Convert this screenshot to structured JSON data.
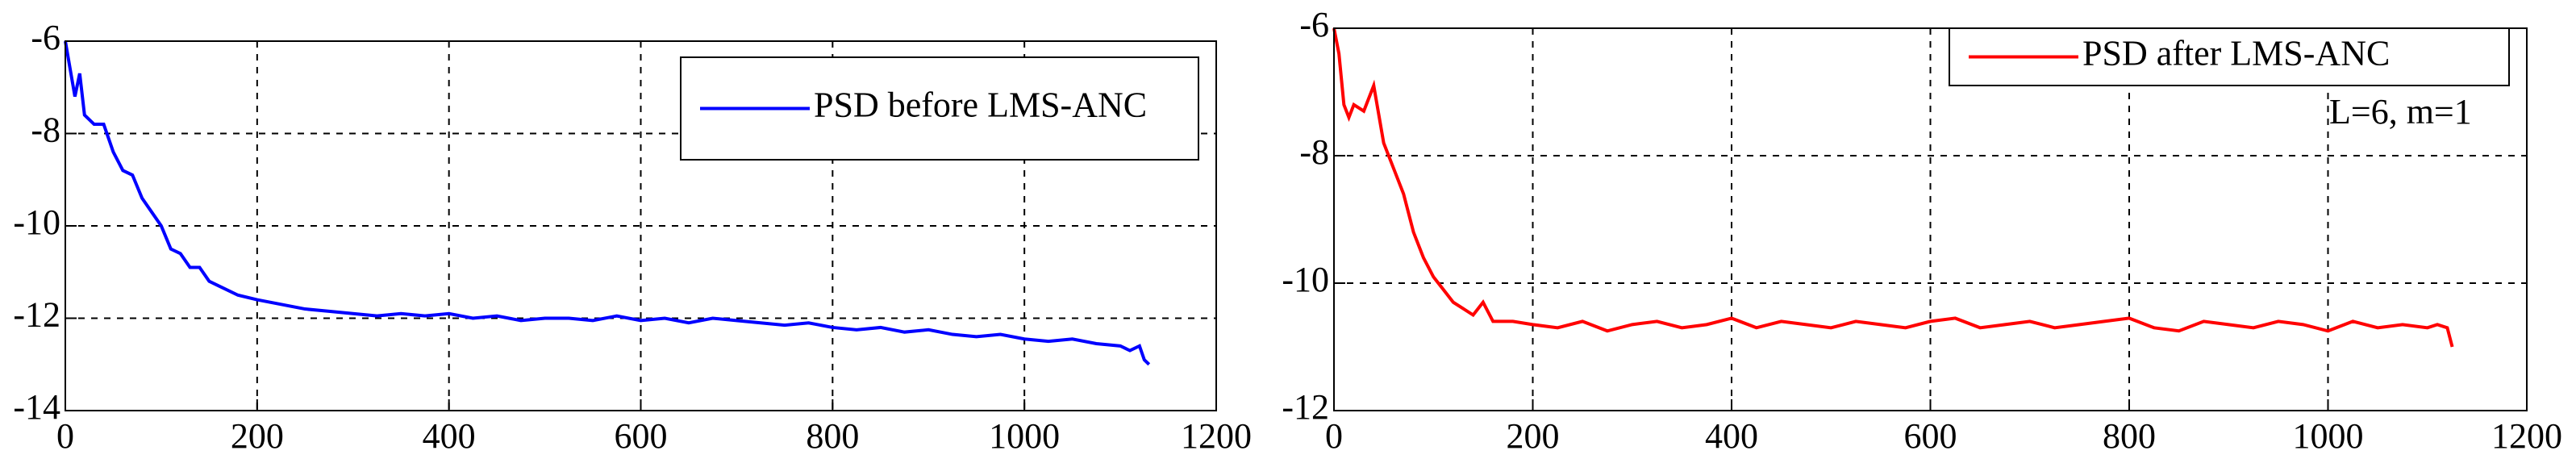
{
  "chart_data": [
    {
      "type": "line",
      "x": [
        0,
        5,
        10,
        15,
        20,
        30,
        40,
        50,
        60,
        70,
        80,
        90,
        100,
        110,
        120,
        130,
        140,
        150,
        160,
        180,
        200,
        225,
        250,
        275,
        300,
        325,
        350,
        375,
        400,
        425,
        450,
        475,
        500,
        525,
        550,
        575,
        600,
        625,
        650,
        675,
        700,
        725,
        750,
        775,
        800,
        825,
        850,
        875,
        900,
        925,
        950,
        975,
        1000,
        1025,
        1050,
        1075,
        1100,
        1110,
        1120,
        1125,
        1130
      ],
      "series": [
        {
          "name": "PSD before LMS-ANC",
          "color": "#0000ff",
          "values": [
            -6.0,
            -6.6,
            -7.2,
            -6.7,
            -7.6,
            -7.8,
            -7.8,
            -8.4,
            -8.8,
            -8.9,
            -9.4,
            -9.7,
            -10.0,
            -10.5,
            -10.6,
            -10.9,
            -10.9,
            -11.2,
            -11.3,
            -11.5,
            -11.6,
            -11.7,
            -11.8,
            -11.85,
            -11.9,
            -11.95,
            -11.9,
            -11.95,
            -11.9,
            -12.0,
            -11.95,
            -12.05,
            -12.0,
            -12.0,
            -12.05,
            -11.95,
            -12.05,
            -12.0,
            -12.1,
            -12.0,
            -12.05,
            -12.1,
            -12.15,
            -12.1,
            -12.2,
            -12.25,
            -12.2,
            -12.3,
            -12.25,
            -12.35,
            -12.4,
            -12.35,
            -12.45,
            -12.5,
            -12.45,
            -12.55,
            -12.6,
            -12.7,
            -12.6,
            -12.9,
            -13.0
          ]
        }
      ],
      "xlim": [
        0,
        1200
      ],
      "xticks": [
        0,
        200,
        400,
        600,
        800,
        1000,
        1200
      ],
      "ylim": [
        -14,
        -6
      ],
      "yticks": [
        -14,
        -12,
        -10,
        -8,
        -6
      ],
      "grid": true,
      "legend": "upper-right"
    },
    {
      "type": "line",
      "x": [
        0,
        5,
        10,
        15,
        20,
        30,
        40,
        50,
        60,
        70,
        80,
        90,
        100,
        110,
        120,
        130,
        140,
        150,
        160,
        180,
        200,
        225,
        250,
        275,
        300,
        325,
        350,
        375,
        400,
        425,
        450,
        475,
        500,
        525,
        550,
        575,
        600,
        625,
        650,
        675,
        700,
        725,
        750,
        775,
        800,
        825,
        850,
        875,
        900,
        925,
        950,
        975,
        1000,
        1025,
        1050,
        1075,
        1100,
        1110,
        1120,
        1125
      ],
      "series": [
        {
          "name": "PSD after LMS-ANC",
          "color": "#ff0000",
          "values": [
            -6.0,
            -6.4,
            -7.2,
            -7.4,
            -7.2,
            -7.3,
            -6.9,
            -7.8,
            -8.2,
            -8.6,
            -9.2,
            -9.6,
            -9.9,
            -10.1,
            -10.3,
            -10.4,
            -10.5,
            -10.3,
            -10.6,
            -10.6,
            -10.65,
            -10.7,
            -10.6,
            -10.75,
            -10.65,
            -10.6,
            -10.7,
            -10.65,
            -10.55,
            -10.7,
            -10.6,
            -10.65,
            -10.7,
            -10.6,
            -10.65,
            -10.7,
            -10.6,
            -10.55,
            -10.7,
            -10.65,
            -10.6,
            -10.7,
            -10.65,
            -10.6,
            -10.55,
            -10.7,
            -10.75,
            -10.6,
            -10.65,
            -10.7,
            -10.6,
            -10.65,
            -10.75,
            -10.6,
            -10.7,
            -10.65,
            -10.7,
            -10.65,
            -10.7,
            -11.0
          ]
        }
      ],
      "xlim": [
        0,
        1200
      ],
      "xticks": [
        0,
        200,
        400,
        600,
        800,
        1000,
        1200
      ],
      "ylim": [
        -12,
        -6
      ],
      "yticks": [
        -12,
        -10,
        -8,
        -6
      ],
      "annotation": "L=6, m=1",
      "grid": true,
      "legend": "upper-right"
    }
  ]
}
